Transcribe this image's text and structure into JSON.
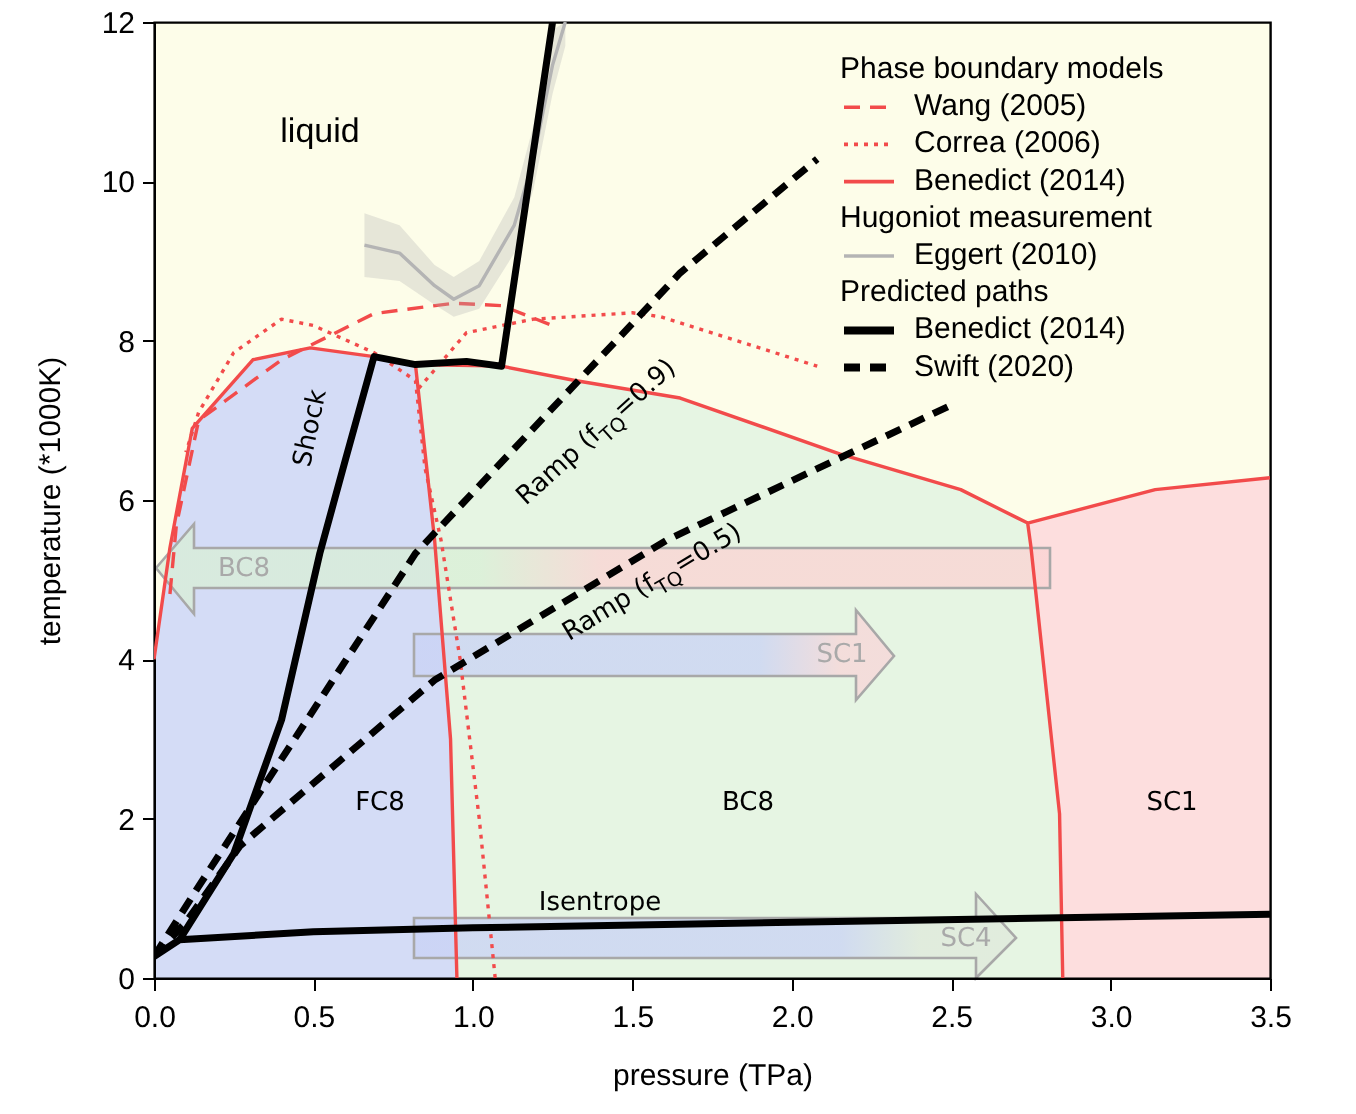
{
  "chart_data": {
    "type": "line",
    "xlabel": "pressure (TPa)",
    "ylabel": "temperature (*1000K)",
    "xlim": [
      0,
      3.5
    ],
    "ylim": [
      0,
      12
    ],
    "xticks": [
      {
        "value": 0,
        "label": "0.0"
      },
      {
        "value": 0.5,
        "label": "0.5"
      },
      {
        "value": 1,
        "label": "1.0"
      },
      {
        "value": 1.5,
        "label": "1.5"
      },
      {
        "value": 2,
        "label": "2.0"
      },
      {
        "value": 2.5,
        "label": "2.5"
      },
      {
        "value": 3,
        "label": "3.0"
      },
      {
        "value": 3.5,
        "label": "3.5"
      }
    ],
    "yticks": [
      0,
      2,
      4,
      6,
      8,
      10,
      12
    ],
    "legend": "top right",
    "series": [
      {
        "type": "line",
        "name": "Wang (2005)",
        "color": "#f24b4b",
        "line_style": "dashed",
        "x": [
          0.05,
          0.07,
          0.14,
          0.4,
          0.49,
          0.69,
          0.94,
          1.09,
          1.25
        ],
        "values": [
          4.82,
          5.68,
          7.0,
          7.76,
          7.94,
          8.34,
          8.47,
          8.44,
          8.19
        ]
      },
      {
        "type": "line",
        "name": "Correa (2006)",
        "color": "#f24b4b",
        "line_style": "dotted",
        "x": [
          1.07,
          1.02,
          0.96,
          0.9,
          0.85,
          0.82,
          0.69,
          0.5,
          0.4,
          0.25,
          0.14,
          0.1,
          null,
          0.83,
          0.98,
          1.19,
          1.5,
          1.59,
          2.08
        ],
        "values": [
          0,
          2.0,
          4.0,
          5.5,
          6.4,
          7.5,
          7.85,
          8.19,
          8.27,
          7.85,
          7.1,
          6.6,
          null,
          7.4,
          8.1,
          8.27,
          8.35,
          8.3,
          7.68
        ]
      },
      {
        "type": "line",
        "name": "Benedict (2014)",
        "color": "#f24b4b",
        "line_style": "solid",
        "x": [
          0,
          0.05,
          0.12,
          0.31,
          0.49,
          0.69,
          0.82,
          0.88,
          0.93,
          0.95,
          0.93,
          0.88,
          0.82,
          1.09,
          1.32,
          1.65,
          2.15,
          2.53,
          2.74,
          2.75,
          2.84,
          2.85,
          2.84,
          2.75,
          2.74,
          3.14,
          3.5
        ],
        "values": [
          4.0,
          5.4,
          6.9,
          7.76,
          7.91,
          7.8,
          7.7,
          5.5,
          3.0,
          0,
          3.0,
          5.5,
          7.7,
          7.68,
          7.5,
          7.28,
          6.58,
          6.13,
          5.71,
          5.42,
          2.06,
          0,
          2.06,
          5.42,
          5.71,
          6.13,
          6.28
        ]
      },
      {
        "type": "line",
        "name": "Eggert (2010)",
        "color": "#b4b4b4",
        "line_style": "solid",
        "x": [
          0.66,
          0.77,
          0.88,
          0.94,
          1.02,
          1.13,
          1.19,
          1.25,
          1.29
        ],
        "values": [
          9.2,
          9.1,
          8.69,
          8.52,
          8.69,
          9.45,
          10.28,
          11.46,
          12.0
        ],
        "lower": [
          8.8,
          8.75,
          8.45,
          8.3,
          8.4,
          9.1,
          9.9,
          11.1,
          11.7
        ],
        "upper": [
          9.6,
          9.45,
          8.95,
          8.8,
          9.0,
          9.8,
          10.7,
          11.9,
          12.0
        ]
      },
      {
        "type": "line",
        "name": "Benedict (2014)",
        "color": "#000000",
        "line_style": "solid",
        "x": [
          0,
          0.08,
          0.25,
          0.4,
          0.52,
          0.6,
          0.69,
          0.82,
          0.98,
          1.09,
          1.25,
          null,
          0.08,
          0.5,
          1.0,
          2.0,
          3.5
        ],
        "values": [
          0.27,
          0.48,
          1.56,
          3.24,
          5.33,
          6.5,
          7.8,
          7.7,
          7.74,
          7.68,
          12,
          null,
          0.48,
          0.58,
          0.63,
          0.7,
          0.8
        ]
      },
      {
        "type": "line",
        "name": "Swift (2020)",
        "color": "#000000",
        "line_style": "dashed",
        "x": [
          0,
          0.14,
          0.82,
          1.65,
          2.08,
          null,
          0,
          0.1,
          0.27,
          0.88,
          1.61,
          2.51
        ],
        "values": [
          0.27,
          1.15,
          5.33,
          8.85,
          10.28,
          null,
          0.27,
          0.7,
          1.66,
          3.74,
          5.5,
          7.21
        ]
      }
    ],
    "annotations": [
      "liquid",
      "Shock",
      "Ramp (f$_{TQ}$=0.9)",
      "Ramp (f$_{TQ}$=0.5)",
      "FC8",
      "BC8",
      "SC1",
      "Isentrope",
      "BC8",
      "SC1",
      "SC4",
      "Phase boundary models",
      "Hugoniot measurement",
      "Predicted paths"
    ]
  }
}
